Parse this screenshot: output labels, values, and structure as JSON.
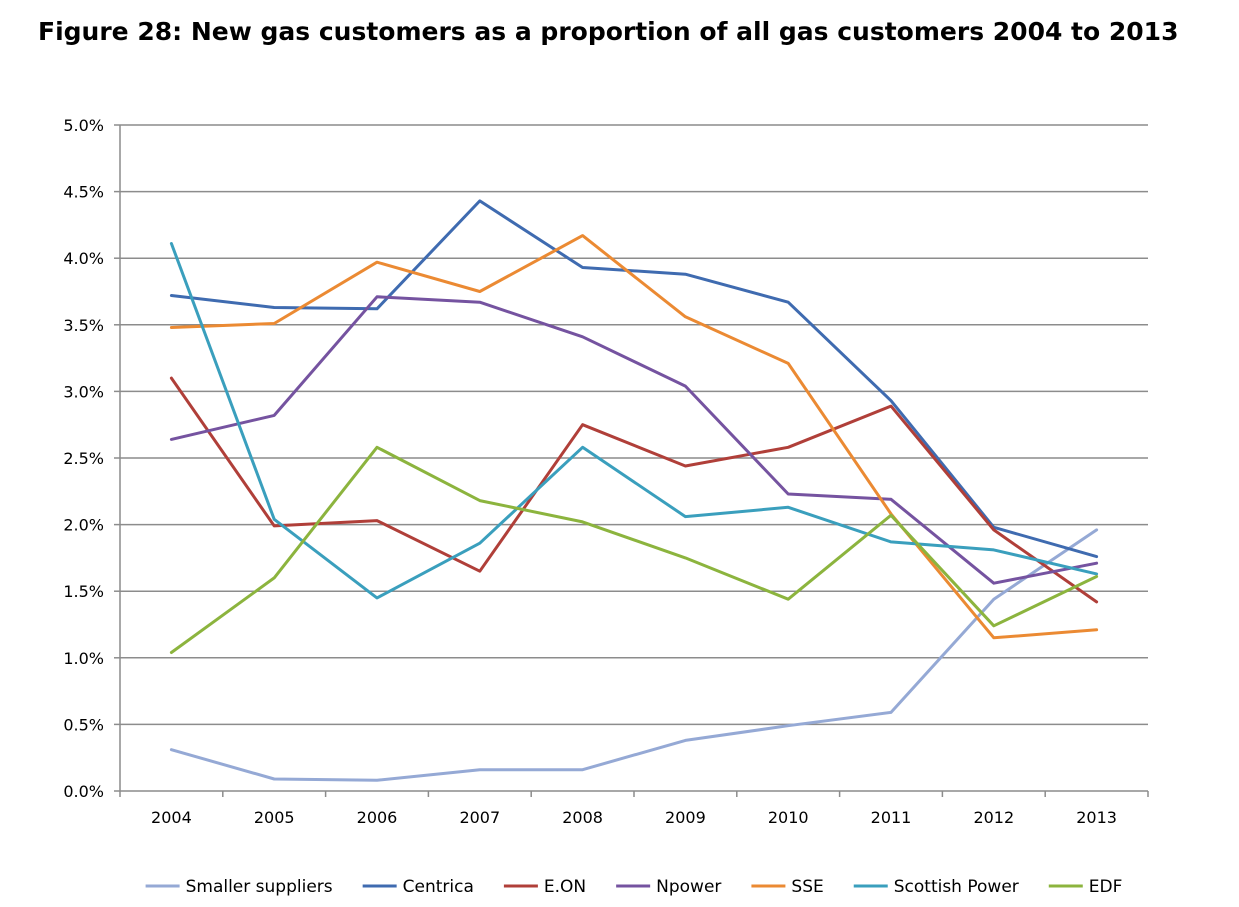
{
  "figure": {
    "title": "Figure 28: New gas customers as a proportion of all gas customers 2004 to 2013"
  },
  "chart_data": {
    "type": "line",
    "title": "Figure 28: New gas customers as a proportion of all gas customers 2004 to 2013",
    "xlabel": "",
    "ylabel": "",
    "categories": [
      "2004",
      "2005",
      "2006",
      "2007",
      "2008",
      "2009",
      "2010",
      "2011",
      "2012",
      "2013"
    ],
    "ylim": [
      0,
      5.0
    ],
    "y_ticks": [
      0,
      0.5,
      1.0,
      1.5,
      2.0,
      2.5,
      3.0,
      3.5,
      4.0,
      4.5,
      5.0
    ],
    "y_tick_labels": [
      "0.0%",
      "0.5%",
      "1.0%",
      "1.5%",
      "2.0%",
      "2.5%",
      "3.0%",
      "3.5%",
      "4.0%",
      "4.5%",
      "5.0%"
    ],
    "grid": true,
    "legend_position": "bottom",
    "series": [
      {
        "name": "Smaller suppliers",
        "color": "#95a9d5",
        "values": [
          0.31,
          0.09,
          0.08,
          0.16,
          0.16,
          0.38,
          0.49,
          0.59,
          1.44,
          1.96
        ]
      },
      {
        "name": "Centrica",
        "color": "#3f6bb0",
        "values": [
          3.72,
          3.63,
          3.62,
          4.43,
          3.93,
          3.88,
          3.67,
          2.93,
          1.98,
          1.76
        ]
      },
      {
        "name": "E.ON",
        "color": "#b03f39",
        "values": [
          3.1,
          1.99,
          2.03,
          1.65,
          2.75,
          2.44,
          2.58,
          2.89,
          1.96,
          1.42
        ]
      },
      {
        "name": "Npower",
        "color": "#7553a0",
        "values": [
          2.64,
          2.82,
          3.71,
          3.67,
          3.41,
          3.04,
          2.23,
          2.19,
          1.56,
          1.71
        ]
      },
      {
        "name": "SSE",
        "color": "#eb8a33",
        "values": [
          3.48,
          3.51,
          3.97,
          3.75,
          4.17,
          3.56,
          3.21,
          2.08,
          1.15,
          1.21
        ]
      },
      {
        "name": "Scottish Power",
        "color": "#3a9fbd",
        "values": [
          4.11,
          2.04,
          1.45,
          1.86,
          2.58,
          2.06,
          2.13,
          1.87,
          1.81,
          1.63
        ]
      },
      {
        "name": "EDF",
        "color": "#8cb43e",
        "values": [
          1.04,
          1.6,
          2.58,
          2.18,
          2.02,
          1.75,
          1.44,
          2.07,
          1.24,
          1.61
        ]
      }
    ]
  }
}
